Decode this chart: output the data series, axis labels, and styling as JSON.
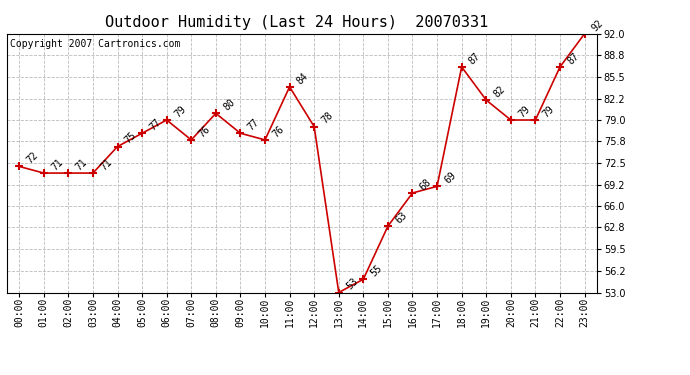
{
  "title": "Outdoor Humidity (Last 24 Hours)  20070331",
  "copyright": "Copyright 2007 Cartronics.com",
  "x_labels": [
    "00:00",
    "01:00",
    "02:00",
    "03:00",
    "04:00",
    "05:00",
    "06:00",
    "07:00",
    "08:00",
    "09:00",
    "10:00",
    "11:00",
    "12:00",
    "13:00",
    "14:00",
    "15:00",
    "16:00",
    "17:00",
    "18:00",
    "19:00",
    "20:00",
    "21:00",
    "22:00",
    "23:00"
  ],
  "y_values": [
    72,
    71,
    71,
    71,
    75,
    77,
    79,
    76,
    80,
    77,
    76,
    84,
    78,
    53,
    55,
    63,
    68,
    69,
    87,
    82,
    79,
    79,
    87,
    92
  ],
  "y_labels": [
    53.0,
    56.2,
    59.5,
    62.8,
    66.0,
    69.2,
    72.5,
    75.8,
    79.0,
    82.2,
    85.5,
    88.8,
    92.0
  ],
  "ylim": [
    53.0,
    92.0
  ],
  "line_color": "#cc0000",
  "marker_color": "#cc0000",
  "bg_color": "#ffffff",
  "plot_bg_color": "#ffffff",
  "grid_color": "#bbbbbb",
  "title_fontsize": 11,
  "copyright_fontsize": 7,
  "label_fontsize": 7,
  "annot_fontsize": 7
}
